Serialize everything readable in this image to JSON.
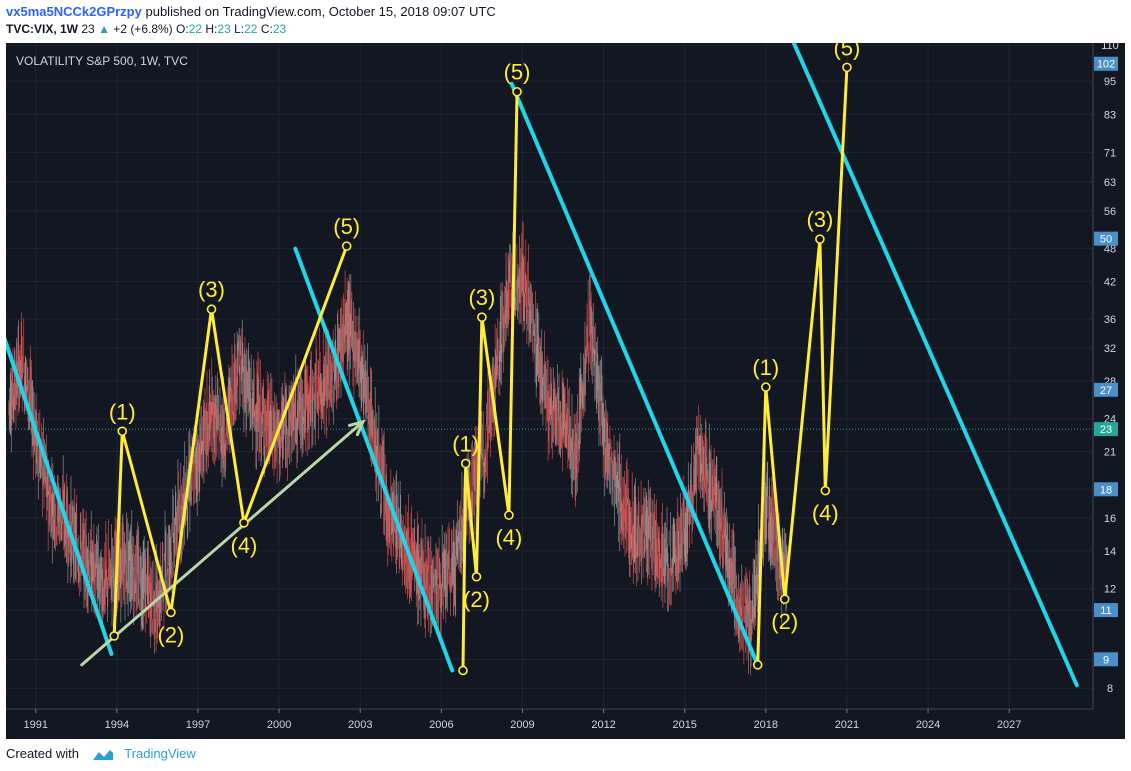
{
  "header": {
    "author": "vx5ma5NCCk2GPrzpy",
    "published_text": "published on TradingView.com, October 15, 2018 09:07 UTC",
    "symbol": "TVC:VIX, 1W",
    "last": "23",
    "change": "+2 (+6.8%)",
    "o_label": "O:",
    "o_value": "22",
    "h_label": "H:",
    "h_value": "23",
    "l_label": "L:",
    "l_value": "22",
    "c_label": "C:",
    "c_value": "23"
  },
  "footer": {
    "created_with": "Created with",
    "brand": "TradingView"
  },
  "colors": {
    "background": "#131722",
    "up_candle": "#9e9e9e",
    "down_candle": "#ef5350",
    "wave_line": "#ffeb3b",
    "trend_line": "#22d4e8",
    "arrow": "#b8d8a8",
    "price_line": "#26a69a",
    "badge": "#4a90c8"
  },
  "chart_data": {
    "type": "line",
    "title": "VOLATILITY S&P 500, 1W, TVC",
    "xlabel": "",
    "ylabel": "",
    "x_ticks": [
      "1991",
      "1994",
      "1997",
      "2000",
      "2003",
      "2006",
      "2009",
      "2012",
      "2015",
      "2018",
      "2021",
      "2024",
      "2027"
    ],
    "y_ticks": [
      8,
      9,
      11,
      12,
      14,
      16,
      18,
      21,
      24,
      28,
      32,
      36,
      42,
      48,
      56,
      63,
      71,
      83,
      95,
      110
    ],
    "y_scale": "log",
    "xlim": [
      1989.9,
      2030.1
    ],
    "ylim": [
      7.35,
      111
    ],
    "price_badges": [
      102,
      50,
      27,
      23,
      18,
      11,
      9
    ],
    "current_price": 23,
    "waves": [
      {
        "points": [
          [
            1993.9,
            9.9
          ],
          [
            1994.2,
            22.8
          ],
          [
            1996.0,
            10.9
          ],
          [
            1997.5,
            37.5
          ],
          [
            1998.7,
            15.7
          ],
          [
            2002.5,
            48.5
          ]
        ],
        "labels": [
          "(1)",
          "(2)",
          "(3)",
          "(4)",
          "(5)"
        ]
      },
      {
        "points": [
          [
            2006.8,
            8.6
          ],
          [
            2006.9,
            20.0
          ],
          [
            2007.3,
            12.6
          ],
          [
            2007.5,
            36.3
          ],
          [
            2008.5,
            16.2
          ],
          [
            2008.8,
            91.0
          ]
        ],
        "labels": [
          "(1)",
          "(2)",
          "(3)",
          "(4)",
          "(5)"
        ]
      },
      {
        "points": [
          [
            2017.7,
            8.8
          ],
          [
            2018.0,
            27.3
          ],
          [
            2018.7,
            11.5
          ],
          [
            2020.0,
            49.9
          ],
          [
            2020.2,
            17.9
          ],
          [
            2021.0,
            100.5
          ]
        ],
        "labels": [
          "(1)",
          "(2)",
          "(3)",
          "(4)",
          "(5)"
        ]
      }
    ],
    "trend_lines": [
      [
        [
          1989.6,
          36.0
        ],
        [
          1993.8,
          9.2
        ]
      ],
      [
        [
          2000.6,
          48.0
        ],
        [
          2006.4,
          8.6
        ]
      ],
      [
        [
          2008.6,
          94.0
        ],
        [
          2017.7,
          8.8
        ]
      ],
      [
        [
          2019.0,
          112.0
        ],
        [
          2029.5,
          8.1
        ]
      ]
    ],
    "arrow": [
      [
        1992.7,
        8.8
      ],
      [
        2003.1,
        23.7
      ]
    ],
    "series": [
      {
        "name": "",
        "x": [
          1990,
          1990.5,
          1991,
          1991.5,
          1992,
          1992.5,
          1993,
          1993.5,
          1994,
          1994.5,
          1995,
          1995.5,
          1996,
          1996.5,
          1997,
          1997.5,
          1998,
          1998.5,
          1999,
          1999.5,
          2000,
          2000.5,
          2001,
          2001.5,
          2002,
          2002.5,
          2003,
          2003.5,
          2004,
          2004.5,
          2005,
          2005.5,
          2006,
          2006.5,
          2007,
          2007.5,
          2008,
          2008.5,
          2009,
          2009.5,
          2010,
          2010.5,
          2011,
          2011.5,
          2012,
          2012.5,
          2013,
          2013.5,
          2014,
          2014.5,
          2015,
          2015.5,
          2016,
          2016.5,
          2017,
          2017.5,
          2018,
          2018.5
        ],
        "y": [
          25,
          30,
          22,
          17,
          16,
          14,
          13,
          12,
          13,
          13,
          12,
          11,
          14,
          17,
          20,
          24,
          22,
          30,
          25,
          23,
          22,
          24,
          25,
          27,
          28,
          35,
          30,
          22,
          16,
          15,
          13,
          12,
          12,
          13,
          17,
          20,
          28,
          40,
          42,
          32,
          24,
          24,
          20,
          35,
          22,
          18,
          15,
          15,
          14,
          13,
          15,
          20,
          18,
          14,
          11,
          10,
          17,
          13
        ]
      }
    ]
  }
}
